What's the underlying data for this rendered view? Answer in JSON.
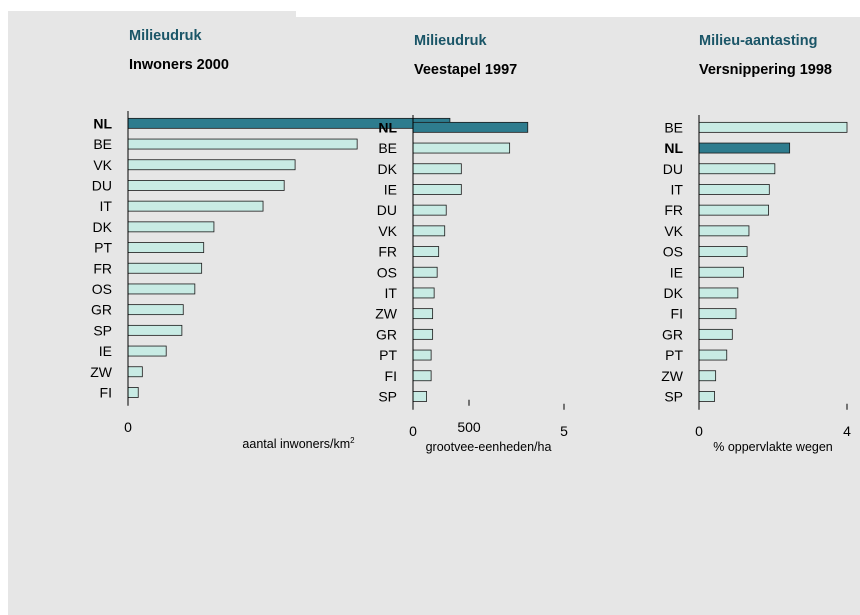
{
  "colors": {
    "highlight": "#2e7c8e",
    "bar": "#c8ebe4",
    "kicker": "#1a5567",
    "background": "#e6e6e6"
  },
  "chart_data": [
    {
      "type": "bar",
      "orientation": "horizontal",
      "kicker": "Milieudruk",
      "title": "Inwoners 2000",
      "xlabel": "aantal inwoners/km",
      "xlabel_sup": "2",
      "xlim": [
        0,
        500
      ],
      "ticks": [
        "0",
        "500"
      ],
      "highlight": "NL",
      "categories": [
        "NL",
        "BE",
        "VK",
        "DU",
        "IT",
        "DK",
        "PT",
        "FR",
        "OS",
        "GR",
        "SP",
        "IE",
        "ZW",
        "FI"
      ],
      "values": [
        472,
        336,
        245,
        229,
        198,
        126,
        111,
        108,
        98,
        81,
        79,
        56,
        21,
        15
      ]
    },
    {
      "type": "bar",
      "orientation": "horizontal",
      "kicker": "Milieudruk",
      "title": "Veestapel 1997",
      "xlabel": "grootvee-eenheden/ha",
      "xlim": [
        0,
        5
      ],
      "ticks": [
        "0",
        "5"
      ],
      "highlight": "NL",
      "categories": [
        "NL",
        "BE",
        "DK",
        "IE",
        "DU",
        "VK",
        "FR",
        "OS",
        "IT",
        "ZW",
        "GR",
        "PT",
        "FI",
        "SP"
      ],
      "values": [
        3.8,
        3.2,
        1.6,
        1.6,
        1.1,
        1.05,
        0.85,
        0.8,
        0.7,
        0.65,
        0.65,
        0.6,
        0.6,
        0.45
      ]
    },
    {
      "type": "bar",
      "orientation": "horizontal",
      "kicker": "Milieu-aantasting",
      "title": "Versnippering 1998",
      "xlabel": "% oppervlakte wegen",
      "xlim": [
        0,
        4
      ],
      "ticks": [
        "0",
        "4"
      ],
      "highlight": "NL",
      "categories": [
        "BE",
        "NL",
        "DU",
        "IT",
        "FR",
        "VK",
        "OS",
        "IE",
        "DK",
        "FI",
        "GR",
        "PT",
        "ZW",
        "SP"
      ],
      "values": [
        4.0,
        2.45,
        2.05,
        1.9,
        1.88,
        1.35,
        1.3,
        1.2,
        1.05,
        1.0,
        0.9,
        0.75,
        0.45,
        0.42
      ]
    }
  ]
}
